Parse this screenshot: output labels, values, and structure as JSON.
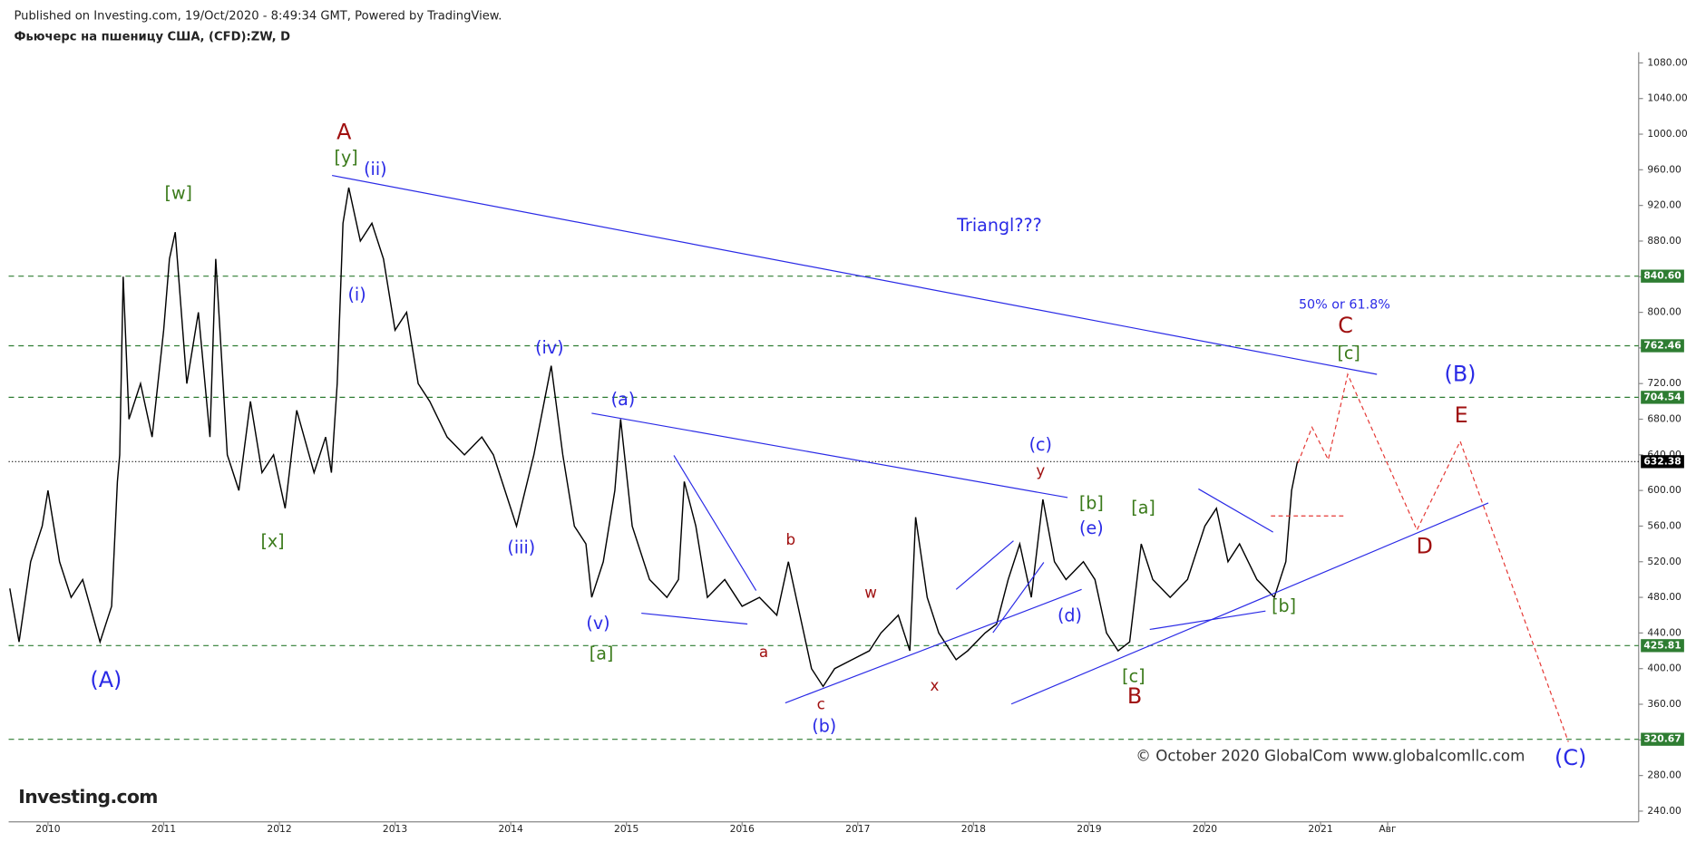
{
  "header": {
    "published": "Published on Investing.com, 19/Oct/2020 - 8:49:34 GMT, Powered by TradingView.",
    "instrument": "Фьючерс на пшеницу США, (CFD):ZW, D"
  },
  "watermark": "© October 2020 GlobalCom www.globalcomllc.com",
  "logo": "Investing.com",
  "chart_data": {
    "type": "line",
    "xlim": [
      2009.66,
      2023.75
    ],
    "ylim": [
      228,
      1092
    ],
    "xticks": [
      2010,
      2011,
      2012,
      2013,
      2014,
      2015,
      2016,
      2017,
      2018,
      2019,
      2020,
      2021,
      {
        "value": 2021.58,
        "label": "Авг"
      }
    ],
    "yticks": [
      {
        "value": 240,
        "label": "240.00"
      },
      {
        "value": 280,
        "label": "280.00"
      },
      {
        "value": 320,
        "label": "320.00"
      },
      {
        "value": 360,
        "label": "360.00"
      },
      {
        "value": 400,
        "label": "400.00"
      },
      {
        "value": 440,
        "label": "440.00"
      },
      {
        "value": 480,
        "label": "480.00"
      },
      {
        "value": 520,
        "label": "520.00"
      },
      {
        "value": 560,
        "label": "560.00"
      },
      {
        "value": 600,
        "label": "600.00"
      },
      {
        "value": 640,
        "label": "640.00"
      },
      {
        "value": 680,
        "label": "680.00"
      },
      {
        "value": 720,
        "label": "720.00"
      },
      {
        "value": 760,
        "label": "760.00"
      },
      {
        "value": 800,
        "label": "800.00"
      },
      {
        "value": 840,
        "label": "840.00"
      },
      {
        "value": 880,
        "label": "880.00"
      },
      {
        "value": 920,
        "label": "920.00"
      },
      {
        "value": 960,
        "label": "960.00"
      },
      {
        "value": 1000,
        "label": "1000.00"
      },
      {
        "value": 1040,
        "label": "1040.00"
      },
      {
        "value": 1080,
        "label": "1080.00"
      }
    ],
    "series": [
      {
        "name": "ZW",
        "color": "#000000",
        "x": [
          2009.67,
          2009.75,
          2009.85,
          2009.95,
          2010.0,
          2010.1,
          2010.2,
          2010.3,
          2010.45,
          2010.55,
          2010.6,
          2010.62,
          2010.65,
          2010.7,
          2010.8,
          2010.9,
          2011.0,
          2011.05,
          2011.1,
          2011.2,
          2011.3,
          2011.4,
          2011.45,
          2011.55,
          2011.65,
          2011.75,
          2011.85,
          2011.95,
          2012.05,
          2012.15,
          2012.3,
          2012.4,
          2012.45,
          2012.5,
          2012.55,
          2012.6,
          2012.7,
          2012.8,
          2012.9,
          2013.0,
          2013.1,
          2013.2,
          2013.3,
          2013.45,
          2013.6,
          2013.75,
          2013.85,
          2013.95,
          2014.05,
          2014.2,
          2014.35,
          2014.45,
          2014.55,
          2014.65,
          2014.7,
          2014.8,
          2014.9,
          2014.95,
          2015.05,
          2015.2,
          2015.35,
          2015.45,
          2015.5,
          2015.6,
          2015.7,
          2015.85,
          2016.0,
          2016.15,
          2016.3,
          2016.4,
          2016.5,
          2016.6,
          2016.7,
          2016.8,
          2016.95,
          2017.1,
          2017.2,
          2017.35,
          2017.45,
          2017.5,
          2017.6,
          2017.7,
          2017.85,
          2017.95,
          2018.1,
          2018.2,
          2018.3,
          2018.4,
          2018.5,
          2018.6,
          2018.7,
          2018.8,
          2018.95,
          2019.05,
          2019.15,
          2019.25,
          2019.35,
          2019.45,
          2019.55,
          2019.7,
          2019.85,
          2020.0,
          2020.1,
          2020.2,
          2020.3,
          2020.45,
          2020.6,
          2020.7,
          2020.75,
          2020.8
        ],
        "values": [
          490,
          430,
          520,
          560,
          600,
          520,
          480,
          500,
          430,
          470,
          610,
          640,
          840,
          680,
          720,
          660,
          780,
          860,
          890,
          720,
          800,
          660,
          860,
          640,
          600,
          700,
          620,
          640,
          580,
          690,
          620,
          660,
          620,
          720,
          900,
          940,
          880,
          900,
          860,
          780,
          800,
          720,
          700,
          660,
          640,
          660,
          640,
          600,
          560,
          640,
          740,
          640,
          560,
          540,
          480,
          520,
          600,
          680,
          560,
          500,
          480,
          500,
          610,
          560,
          480,
          500,
          470,
          480,
          460,
          520,
          460,
          400,
          380,
          400,
          410,
          420,
          440,
          460,
          420,
          570,
          480,
          440,
          410,
          420,
          440,
          450,
          500,
          540,
          480,
          590,
          520,
          500,
          520,
          500,
          440,
          420,
          430,
          540,
          500,
          480,
          500,
          560,
          580,
          520,
          540,
          500,
          480,
          520,
          600,
          632.38
        ]
      }
    ],
    "levels": {
      "values": [
        840.6,
        762.46,
        704.54,
        425.81,
        320.67
      ],
      "value_labels": [
        "840.60",
        "762.46",
        "704.54",
        "425.81",
        "320.67"
      ],
      "color": "#2e7d32"
    },
    "last_price": {
      "value": 632.38,
      "label": "632.38"
    },
    "annotations": [
      {
        "text": "(A)",
        "color": "#2a2ae6"
      },
      {
        "text": "(i)",
        "color": "#2a2ae6"
      },
      {
        "text": "(ii)",
        "color": "#2a2ae6"
      },
      {
        "text": "(iii)",
        "color": "#2a2ae6"
      },
      {
        "text": "(iv)",
        "color": "#2a2ae6"
      },
      {
        "text": "(v)",
        "color": "#2a2ae6"
      },
      {
        "text": "(a)",
        "color": "#2a2ae6"
      },
      {
        "text": "(b)",
        "color": "#2a2ae6"
      },
      {
        "text": "(c)",
        "color": "#2a2ae6"
      },
      {
        "text": "(d)",
        "color": "#2a2ae6"
      },
      {
        "text": "(e)",
        "color": "#2a2ae6"
      },
      {
        "text": "(B)",
        "color": "#2a2ae6"
      },
      {
        "text": "(C)",
        "color": "#2a2ae6"
      },
      {
        "text": "Triangl???",
        "color": "#2a2ae6"
      },
      {
        "text": "50% or 61.8%",
        "color": "#2a2ae6"
      },
      {
        "text": "[w]",
        "color": "#3a7a1a"
      },
      {
        "text": "[y]",
        "color": "#3a7a1a"
      },
      {
        "text": "[x]",
        "color": "#3a7a1a"
      },
      {
        "text": "[a]",
        "color": "#3a7a1a"
      },
      {
        "text": "[b]",
        "color": "#3a7a1a"
      },
      {
        "text": "[a]",
        "color": "#3a7a1a"
      },
      {
        "text": "[c]",
        "color": "#3a7a1a"
      },
      {
        "text": "[b]",
        "color": "#3a7a1a"
      },
      {
        "text": "[c]",
        "color": "#3a7a1a"
      },
      {
        "text": "A",
        "color": "#a01010"
      },
      {
        "text": "b",
        "color": "#a01010"
      },
      {
        "text": "a",
        "color": "#a01010"
      },
      {
        "text": "c",
        "color": "#a01010"
      },
      {
        "text": "w",
        "color": "#a01010"
      },
      {
        "text": "x",
        "color": "#a01010"
      },
      {
        "text": "y",
        "color": "#a01010"
      },
      {
        "text": "B",
        "color": "#a01010"
      },
      {
        "text": "C",
        "color": "#a01010"
      },
      {
        "text": "D",
        "color": "#a01010"
      },
      {
        "text": "E",
        "color": "#a01010"
      }
    ]
  }
}
